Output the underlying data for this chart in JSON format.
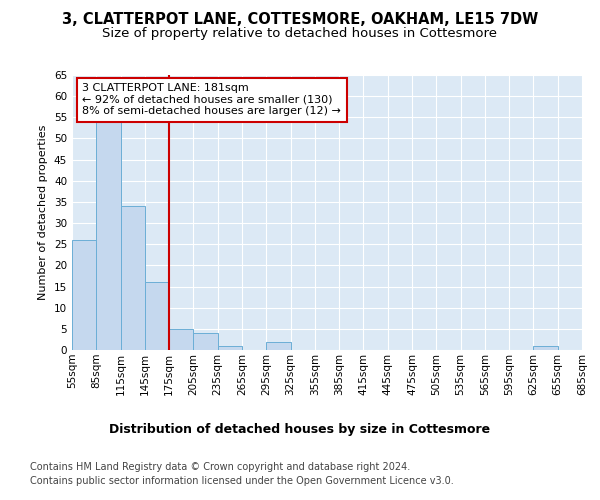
{
  "title": "3, CLATTERPOT LANE, COTTESMORE, OAKHAM, LE15 7DW",
  "subtitle": "Size of property relative to detached houses in Cottesmore",
  "xlabel": "Distribution of detached houses by size in Cottesmore",
  "ylabel": "Number of detached properties",
  "bar_color": "#c5d8ee",
  "bar_edge_color": "#6baed6",
  "background_color": "#dce9f5",
  "annotation_text": "3 CLATTERPOT LANE: 181sqm\n← 92% of detached houses are smaller (130)\n8% of semi-detached houses are larger (12) →",
  "vline_x": 175,
  "vline_color": "#cc0000",
  "annotation_box_color": "#ffffff",
  "annotation_box_edge": "#cc0000",
  "bin_edges": [
    55,
    85,
    115,
    145,
    175,
    205,
    235,
    265,
    295,
    325,
    355,
    385,
    415,
    445,
    475,
    505,
    535,
    565,
    595,
    625,
    655
  ],
  "counts": [
    26,
    54,
    34,
    16,
    5,
    4,
    1,
    0,
    2,
    0,
    0,
    0,
    0,
    0,
    0,
    0,
    0,
    0,
    0,
    1
  ],
  "ylim": [
    0,
    65
  ],
  "yticks": [
    0,
    5,
    10,
    15,
    20,
    25,
    30,
    35,
    40,
    45,
    50,
    55,
    60,
    65
  ],
  "xlim_left": 55,
  "xlim_right": 685,
  "footer_line1": "Contains HM Land Registry data © Crown copyright and database right 2024.",
  "footer_line2": "Contains public sector information licensed under the Open Government Licence v3.0.",
  "title_fontsize": 10.5,
  "subtitle_fontsize": 9.5,
  "xlabel_fontsize": 9,
  "ylabel_fontsize": 8,
  "tick_fontsize": 7.5,
  "annot_fontsize": 8,
  "footer_fontsize": 7
}
